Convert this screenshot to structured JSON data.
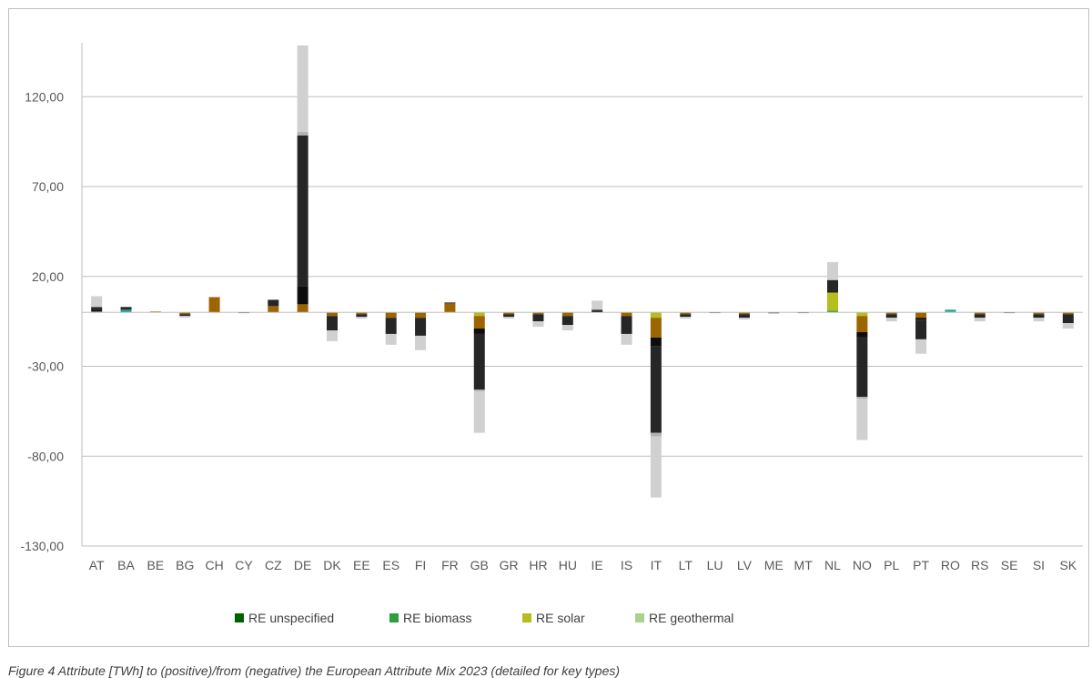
{
  "caption": "Figure 4 Attribute [TWh] to (positive)/from (negative) the European Attribute Mix 2023 (detailed for key types)",
  "chart_data": {
    "type": "bar",
    "stacked": true,
    "categories": [
      "AT",
      "BA",
      "BE",
      "BG",
      "CH",
      "CY",
      "CZ",
      "DE",
      "DK",
      "EE",
      "ES",
      "FI",
      "FR",
      "GB",
      "GR",
      "HR",
      "HU",
      "IE",
      "IS",
      "IT",
      "LT",
      "LU",
      "LV",
      "ME",
      "MT",
      "NL",
      "NO",
      "PL",
      "PT",
      "RO",
      "RS",
      "SE",
      "SI",
      "SK"
    ],
    "y_ticks": [
      "-130,00",
      "-80,00",
      "-30,00",
      "20,00",
      "70,00",
      "120,00"
    ],
    "y_tick_values": [
      -130,
      -80,
      -30,
      20,
      70,
      120
    ],
    "ylim": [
      -130,
      150
    ],
    "grid": true,
    "legend_position": "bottom",
    "series": [
      {
        "name": "RE unspecified",
        "color": "#006100",
        "legend": true,
        "values": [
          0,
          0,
          0,
          0,
          0,
          0,
          0,
          0,
          0,
          0,
          0,
          0,
          0,
          0,
          0,
          0,
          0,
          0,
          0,
          0,
          0,
          0,
          0,
          0,
          0,
          0,
          0,
          0,
          0,
          0,
          0,
          0,
          0,
          0
        ]
      },
      {
        "name": "RE biomass",
        "color": "#2e9e3f",
        "legend": true,
        "values": [
          0.5,
          0,
          0,
          0,
          0,
          0,
          0,
          0,
          0,
          0,
          0,
          0,
          0,
          0,
          0,
          0,
          0,
          0,
          0,
          0,
          0,
          0,
          0,
          0,
          0,
          1,
          0,
          0,
          0,
          0.5,
          0,
          0,
          0,
          0
        ]
      },
      {
        "name": "RE solar",
        "color": "#b4be1c",
        "legend": true,
        "values": [
          0,
          0,
          0,
          0,
          0,
          0,
          0,
          0,
          0,
          0,
          0,
          0,
          0,
          -2,
          0,
          0,
          0,
          0,
          0,
          -3,
          0,
          0,
          0,
          0,
          0,
          10,
          -2,
          0,
          0,
          0,
          0,
          0,
          0,
          0
        ]
      },
      {
        "name": "RE geothermal",
        "color": "#a9d18e",
        "legend": true,
        "values": [
          0,
          0,
          0,
          0,
          0,
          0,
          0,
          0,
          0,
          0,
          0,
          0,
          0,
          0,
          0,
          0,
          0,
          0,
          0,
          0,
          0,
          0,
          0,
          0,
          0,
          0,
          0,
          0,
          0,
          0,
          0,
          0,
          0,
          0
        ]
      },
      {
        "name": "",
        "color": "#15a896",
        "legend": false,
        "values": [
          0,
          1.5,
          0,
          0,
          0,
          0,
          0,
          0,
          0,
          0,
          0,
          0,
          0,
          0,
          0,
          0,
          0,
          0,
          0,
          0,
          0,
          0,
          0,
          0,
          0,
          0,
          0,
          0,
          0,
          1,
          0,
          0,
          0,
          0
        ]
      },
      {
        "name": "",
        "color": "#9c6500",
        "legend": false,
        "values": [
          0,
          0,
          0.5,
          -1,
          8.5,
          0,
          3.5,
          4.5,
          -2,
          -1,
          -3,
          -3,
          5,
          -7,
          -1,
          -1,
          -2,
          0,
          -2,
          -11,
          -1,
          0,
          -1,
          0,
          0,
          0,
          -9,
          -1,
          -3,
          0,
          -1,
          0,
          -1,
          -1
        ]
      },
      {
        "name": "",
        "color": "#0d0d0d",
        "legend": false,
        "values": [
          1,
          0,
          0,
          0,
          0,
          0,
          0,
          10,
          0,
          0,
          0,
          0,
          0,
          -3,
          0,
          0,
          0,
          1,
          0,
          -5,
          0,
          0,
          0,
          0,
          0,
          0,
          -3,
          0,
          -1,
          0,
          0,
          0,
          0,
          0
        ]
      },
      {
        "name": "",
        "color": "#262626",
        "legend": false,
        "values": [
          1.5,
          1.5,
          0,
          -1,
          0,
          -0.2,
          3.5,
          84,
          -8,
          -1.5,
          -9,
          -10,
          0.5,
          -31,
          -1.5,
          -4,
          -5,
          0.5,
          -10,
          -48,
          -1.5,
          -0.3,
          -2,
          -0.5,
          -0.3,
          7,
          -33,
          -2,
          -11,
          0,
          -2,
          -0.3,
          -2,
          -5
        ]
      },
      {
        "name": "",
        "color": "#b3b3b3",
        "legend": false,
        "values": [
          0,
          0,
          0,
          0,
          0,
          0,
          0,
          2,
          0,
          0,
          0,
          0,
          0,
          -1,
          0,
          0,
          0,
          0,
          0,
          -2,
          0,
          0,
          0,
          0,
          0,
          0,
          -1,
          0,
          0,
          0,
          0,
          0,
          0,
          0
        ]
      },
      {
        "name": "",
        "color": "#d0d0d0",
        "legend": false,
        "values": [
          6,
          0,
          0,
          -1,
          0,
          0,
          0,
          48,
          -6,
          -1,
          -6,
          -8,
          0,
          -23,
          -1,
          -3,
          -3,
          5,
          -6,
          -34,
          -1,
          0,
          -1,
          0,
          0,
          10,
          -23,
          -2,
          -8,
          0,
          -2,
          0,
          -2,
          -3
        ]
      }
    ]
  }
}
